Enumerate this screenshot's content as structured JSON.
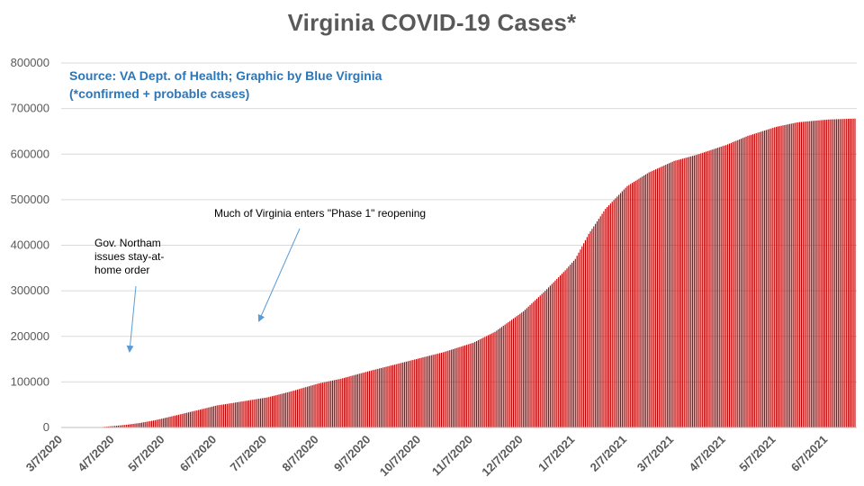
{
  "chart_data": {
    "type": "bar",
    "title": "Virginia COVID-19 Cases*",
    "subtitle": [
      "Source: VA Dept. of Health; Graphic by Blue Virginia",
      "(*confirmed + probable cases)"
    ],
    "xlabel": "",
    "ylabel": "",
    "ylim": [
      0,
      800000
    ],
    "yticks": [
      0,
      100000,
      200000,
      300000,
      400000,
      500000,
      600000,
      700000,
      800000
    ],
    "ytick_labels": [
      "0",
      "100000",
      "200000",
      "300000",
      "400000",
      "500000",
      "600000",
      "700000",
      "800000"
    ],
    "x_start": "2020-03-07",
    "x_end": "2021-06-23",
    "xtick_dates": [
      "2020-03-07",
      "2020-04-07",
      "2020-05-07",
      "2020-06-07",
      "2020-07-07",
      "2020-08-07",
      "2020-09-07",
      "2020-10-07",
      "2020-11-07",
      "2020-12-07",
      "2021-01-07",
      "2021-02-07",
      "2021-03-07",
      "2021-04-07",
      "2021-05-07",
      "2021-06-07"
    ],
    "xtick_labels": [
      "3/7/2020",
      "4/7/2020",
      "5/7/2020",
      "6/7/2020",
      "7/7/2020",
      "8/7/2020",
      "9/7/2020",
      "10/7/2020",
      "11/7/2020",
      "12/7/2020",
      "1/7/2021",
      "2/7/2021",
      "3/7/2021",
      "4/7/2021",
      "5/7/2021",
      "6/7/2021"
    ],
    "grid": true,
    "bar_color": "#c00000",
    "series_points": [
      {
        "date": "2020-03-07",
        "cases": 0
      },
      {
        "date": "2020-03-17",
        "cases": 100
      },
      {
        "date": "2020-03-24",
        "cases": 400
      },
      {
        "date": "2020-03-30",
        "cases": 1000
      },
      {
        "date": "2020-04-07",
        "cases": 3500
      },
      {
        "date": "2020-04-15",
        "cases": 6500
      },
      {
        "date": "2020-04-22",
        "cases": 10000
      },
      {
        "date": "2020-05-01",
        "cases": 16000
      },
      {
        "date": "2020-05-07",
        "cases": 21000
      },
      {
        "date": "2020-05-15",
        "cases": 28000
      },
      {
        "date": "2020-05-23",
        "cases": 35000
      },
      {
        "date": "2020-06-01",
        "cases": 43000
      },
      {
        "date": "2020-06-07",
        "cases": 48500
      },
      {
        "date": "2020-06-15",
        "cases": 53000
      },
      {
        "date": "2020-06-25",
        "cases": 59000
      },
      {
        "date": "2020-07-07",
        "cases": 66000
      },
      {
        "date": "2020-07-20",
        "cases": 78000
      },
      {
        "date": "2020-08-07",
        "cases": 97000
      },
      {
        "date": "2020-08-20",
        "cases": 107000
      },
      {
        "date": "2020-09-07",
        "cases": 125000
      },
      {
        "date": "2020-09-20",
        "cases": 137000
      },
      {
        "date": "2020-10-07",
        "cases": 153000
      },
      {
        "date": "2020-10-20",
        "cases": 165000
      },
      {
        "date": "2020-11-07",
        "cases": 186000
      },
      {
        "date": "2020-11-20",
        "cases": 210000
      },
      {
        "date": "2020-12-07",
        "cases": 255000
      },
      {
        "date": "2020-12-20",
        "cases": 300000
      },
      {
        "date": "2021-01-01",
        "cases": 345000
      },
      {
        "date": "2021-01-07",
        "cases": 370000
      },
      {
        "date": "2021-01-15",
        "cases": 425000
      },
      {
        "date": "2021-01-25",
        "cases": 480000
      },
      {
        "date": "2021-02-07",
        "cases": 530000
      },
      {
        "date": "2021-02-20",
        "cases": 560000
      },
      {
        "date": "2021-03-07",
        "cases": 585000
      },
      {
        "date": "2021-03-20",
        "cases": 598000
      },
      {
        "date": "2021-04-07",
        "cases": 620000
      },
      {
        "date": "2021-04-20",
        "cases": 640000
      },
      {
        "date": "2021-05-07",
        "cases": 660000
      },
      {
        "date": "2021-05-20",
        "cases": 670000
      },
      {
        "date": "2021-06-07",
        "cases": 676000
      },
      {
        "date": "2021-06-23",
        "cases": 678000
      }
    ],
    "annotations": [
      {
        "lines": [
          "Gov. Northam",
          "issues stay-at-",
          "home order"
        ],
        "date": "2020-03-30"
      },
      {
        "lines": [
          "Much of Virginia enters \"Phase 1\" reopening"
        ],
        "date": "2020-05-15"
      }
    ]
  },
  "colors": {
    "bar": "#c00000",
    "title": "#595959",
    "source_text": "#2e75b6",
    "axis_text": "#595959",
    "grid": "#d9d9d9",
    "arrow": "#5b9bd5"
  }
}
